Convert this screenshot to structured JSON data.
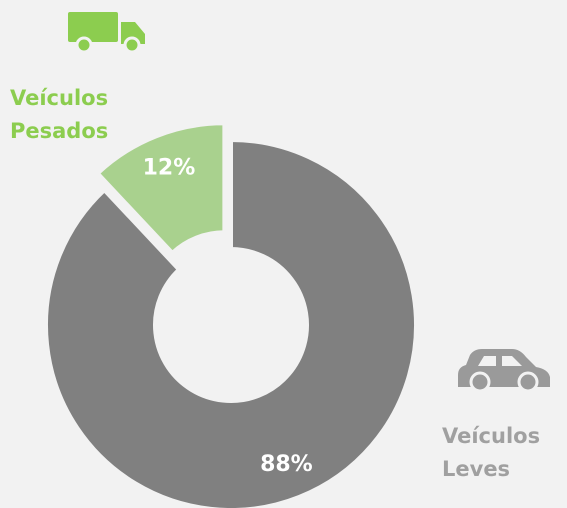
{
  "chart_data": {
    "type": "pie",
    "categories": [
      "Veículos Leves",
      "Veículos Pesados"
    ],
    "values": [
      88,
      12
    ],
    "value_labels": [
      "88%",
      "12%"
    ],
    "colors": [
      "#808080",
      "#a9d18e"
    ],
    "label_colors": [
      "#a0a0a0",
      "#8ccd4f"
    ]
  }
}
